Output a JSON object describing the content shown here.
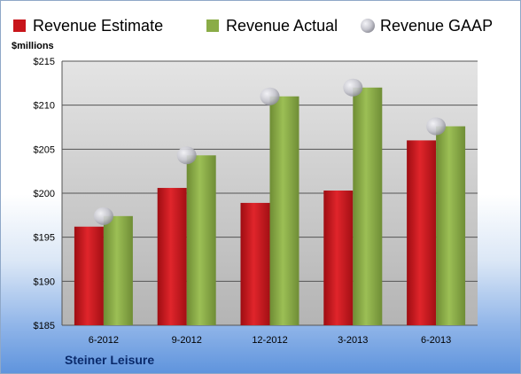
{
  "chart_data": {
    "type": "bar",
    "categories": [
      "6-2012",
      "9-2012",
      "12-2012",
      "3-2013",
      "6-2013"
    ],
    "series": [
      {
        "name": "Revenue Estimate",
        "values": [
          196.2,
          200.6,
          198.9,
          200.3,
          206.0
        ],
        "color": "#c8151b",
        "kind": "bar"
      },
      {
        "name": "Revenue Actual",
        "values": [
          197.4,
          204.3,
          211.0,
          212.0,
          207.6
        ],
        "color": "#8aac47",
        "kind": "bar"
      },
      {
        "name": "Revenue GAAP",
        "values": [
          197.4,
          204.3,
          211.0,
          212.0,
          207.6
        ],
        "color": "#c8c8d0",
        "kind": "marker"
      }
    ],
    "ylabel": "$millions",
    "ylim": [
      185,
      215
    ],
    "yticks": [
      185,
      190,
      195,
      200,
      205,
      210,
      215
    ],
    "ytick_labels": [
      "$185",
      "$190",
      "$195",
      "$200",
      "$205",
      "$210",
      "$215"
    ],
    "grid": true,
    "legend_position": "top"
  },
  "company_name": "Steiner Leisure"
}
